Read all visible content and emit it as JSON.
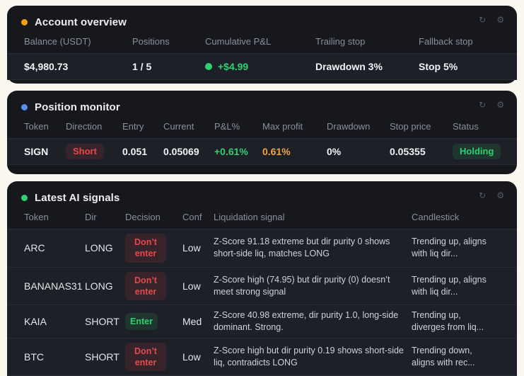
{
  "colors": {
    "page_background": "#faf8ef",
    "panel_background": "#16181e",
    "row_background": "#1d2026",
    "positive_green": "#2fd06f",
    "warning_orange": "#eda63c",
    "danger_red": "#e5484d",
    "account_dot": "#f59f0a",
    "positions_dot": "#5b8def",
    "signals_dot": "#2fd06f"
  },
  "icons": {
    "refresh": "↻",
    "gear": "⚙"
  },
  "account": {
    "title": "Account overview",
    "headers": [
      "Balance (USDT)",
      "Positions",
      "Cumulative P&L",
      "Trailing stop",
      "Fallback stop"
    ],
    "values": {
      "balance": "$4,980.73",
      "positions": "1 / 5",
      "cumulative_pnl": "+$4.99",
      "trailing_stop": "Drawdown 3%",
      "fallback_stop": "Stop 5%"
    }
  },
  "positions": {
    "title": "Position monitor",
    "headers": [
      "Token",
      "Direction",
      "Entry",
      "Current",
      "P&L%",
      "Max profit",
      "Drawdown",
      "Stop price",
      "Status"
    ],
    "row": {
      "token": "SIGN",
      "direction": "Short",
      "entry": "0.051",
      "current": "0.05069",
      "pnl_pct": "+0.61%",
      "max_profit": "0.61%",
      "drawdown": "0%",
      "stop_price": "0.05355",
      "status": "Holding"
    }
  },
  "signals": {
    "title": "Latest AI signals",
    "headers": [
      "Token",
      "Dir",
      "Decision",
      "Conf",
      "Liquidation signal",
      "Candlestick"
    ],
    "rows": [
      {
        "token": "ARC",
        "dir": "LONG",
        "decision": "Don’t enter",
        "conf": "Low",
        "liquidation": "Z-Score 91.18 extreme but dir purity 0 shows short-side liq, matches LONG",
        "candlestick": "Trending up, aligns with liq dir..."
      },
      {
        "token": "BANANAS31",
        "dir": "LONG",
        "decision": "Don’t enter",
        "conf": "Low",
        "liquidation": "Z-Score high (74.95) but dir purity (0) doesn’t meet strong signal",
        "candlestick": "Trending up, aligns with liq dir..."
      },
      {
        "token": "KAIA",
        "dir": "SHORT",
        "decision": "Enter",
        "conf": "Med",
        "liquidation": "Z-Score 40.98 extreme, dir purity 1.0, long-side dominant. Strong.",
        "candlestick": "Trending up, diverges from liq..."
      },
      {
        "token": "BTC",
        "dir": "SHORT",
        "decision": "Don’t enter",
        "conf": "Low",
        "liquidation": "Z-Score high but dir purity 0.19 shows short-side liq, contradicts LONG",
        "candlestick": "Trending down, aligns with rec..."
      }
    ]
  }
}
